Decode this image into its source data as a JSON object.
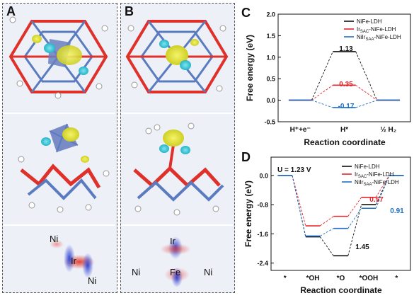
{
  "panels": {
    "a": {
      "letter": "A",
      "bottom_labels": [
        "Ni",
        "Ir",
        "Ni"
      ]
    },
    "b": {
      "letter": "B",
      "bottom_labels": [
        "Ir",
        "Ni",
        "Fe",
        "Ni"
      ]
    },
    "c": {
      "letter": "C"
    },
    "d": {
      "letter": "D"
    }
  },
  "colors": {
    "nife": "#111111",
    "irsac": "#e8242a",
    "niirsaa": "#1f6fc4",
    "bond_red": "#e0302a",
    "bond_blue": "#5a7bbf",
    "iso_yellow": "#dede3a",
    "iso_cyan": "#3cc8d8"
  },
  "chart_data": [
    {
      "type": "line",
      "panel": "C",
      "xlabel": "Reaction coordinate",
      "ylabel": "Free energy (eV)",
      "ylim": [
        -0.5,
        2.0
      ],
      "yticks": [
        -0.5,
        0.0,
        0.5,
        1.0,
        1.5,
        2.0
      ],
      "ytick_labels": [
        "-0.5",
        "0.0",
        "0.5",
        "1.0",
        "1.5",
        "2.0"
      ],
      "categories": [
        "H⁺+e⁻",
        "H*",
        "½ H₂"
      ],
      "legend_position": "top-right",
      "legend": [
        "NiFe-LDH",
        "Ir_SAC-NiFe-LDH",
        "NiIr_SAA-NiFe-LDH"
      ],
      "series": [
        {
          "name": "NiFe-LDH",
          "values": [
            0,
            1.13,
            0
          ],
          "color": "#111111",
          "label": "1.13"
        },
        {
          "name": "Ir_SAC-NiFe-LDH",
          "values": [
            0,
            0.35,
            0
          ],
          "color": "#e8242a",
          "label": "0.35"
        },
        {
          "name": "NiIr_SAA-NiFe-LDH",
          "values": [
            0,
            -0.17,
            0
          ],
          "color": "#1f6fc4",
          "label": "-0.17"
        }
      ]
    },
    {
      "type": "line",
      "panel": "D",
      "annotation": "U = 1.23 V",
      "xlabel": "Reaction coordinate",
      "ylabel": "Free energy (eV)",
      "ylim": [
        -2.6,
        0.5
      ],
      "yticks": [
        -2.4,
        -1.6,
        -0.8,
        0.0
      ],
      "ytick_labels": [
        "-2.4",
        "-1.6",
        "-0.8",
        "0.0"
      ],
      "categories": [
        "*",
        "*OH",
        "*O",
        "*OOH",
        "*"
      ],
      "legend_position": "top-right",
      "legend": [
        "NiFe-LDH",
        "Ir_SAC-NiFe-LDH",
        "NiIr_SAA-NiFe-LDH"
      ],
      "series": [
        {
          "name": "NiFe-LDH",
          "values": [
            0,
            -1.68,
            -2.2,
            -0.8,
            0
          ],
          "color": "#111111",
          "label": "1.45"
        },
        {
          "name": "Ir_SAC-NiFe-LDH",
          "values": [
            0,
            -1.38,
            -1.12,
            -0.6,
            0
          ],
          "color": "#e8242a",
          "label": "0.57"
        },
        {
          "name": "NiIr_SAA-NiFe-LDH",
          "values": [
            0,
            -1.66,
            -1.45,
            -0.9,
            0
          ],
          "color": "#1f6fc4",
          "label": "0.91"
        }
      ]
    }
  ]
}
